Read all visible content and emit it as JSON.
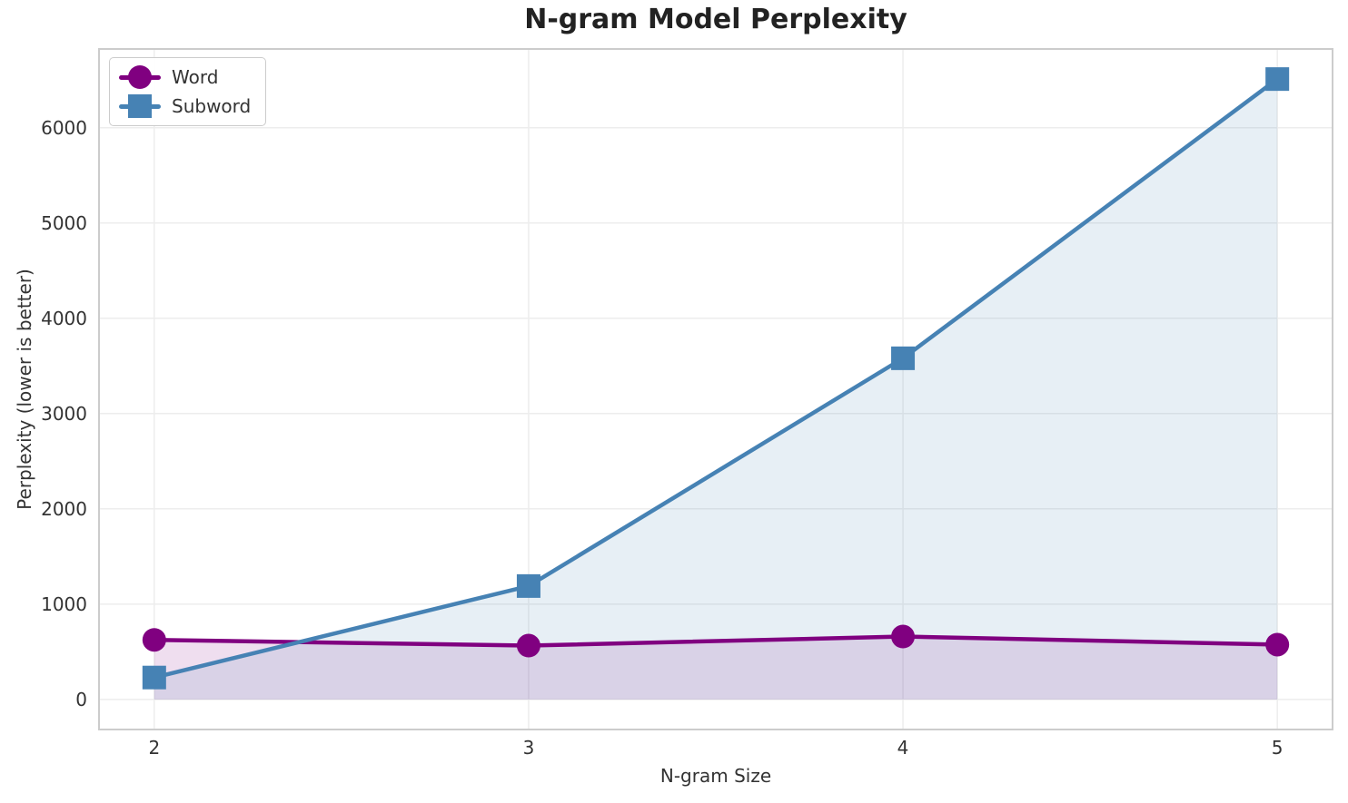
{
  "styles": {
    "grid_color": "#ededed",
    "spine_color": "#cccccc",
    "text_color": "#333333",
    "title_color": "#222222",
    "background": "#ffffff"
  },
  "chart_data": {
    "type": "line",
    "title": "N-gram Model Perplexity",
    "xlabel": "N-gram Size",
    "ylabel": "Perplexity (lower is better)",
    "x": [
      2,
      3,
      4,
      5
    ],
    "xticks": [
      2,
      3,
      4,
      5
    ],
    "yticks": [
      0,
      1000,
      2000,
      3000,
      4000,
      5000,
      6000
    ],
    "xlim": [
      1.85,
      5.15
    ],
    "ylim": [
      -325,
      6835
    ],
    "grid": true,
    "area_fill": true,
    "fill_baseline": 0,
    "fill_opacity": 0.13,
    "legend_position": "upper-left",
    "series": [
      {
        "name": "Word",
        "color": "#800080",
        "marker": "circle",
        "values": [
          625,
          565,
          660,
          575
        ]
      },
      {
        "name": "Subword",
        "color": "#4682B4",
        "marker": "square",
        "values": [
          230,
          1190,
          3580,
          6510
        ]
      }
    ]
  }
}
